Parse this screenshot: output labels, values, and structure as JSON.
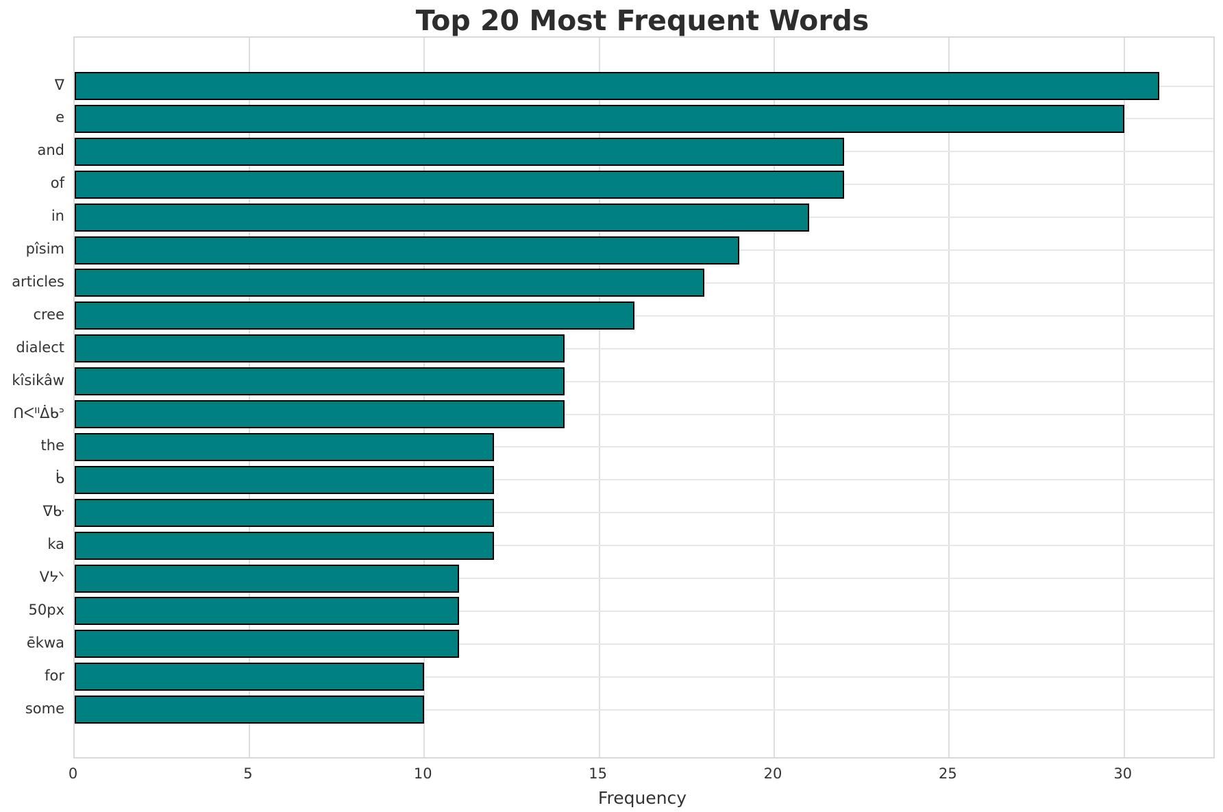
{
  "chart": {
    "title": "Top 20 Most Frequent Words",
    "xlabel": "Frequency"
  },
  "colors": {
    "bar_fill": "#008080",
    "bar_edge": "#000000",
    "grid": "#dedede",
    "spine": "#d9d9d9",
    "title_text": "#2d2d2d",
    "tick_text": "#333333"
  },
  "chart_data": {
    "type": "bar",
    "orientation": "horizontal",
    "title": "Top 20 Most Frequent Words",
    "xlabel": "Frequency",
    "ylabel": "",
    "categories": [
      "ᐁ",
      "e",
      "and",
      "of",
      "in",
      "pîsim",
      "articles",
      "cree",
      "dialect",
      "kîsikâw",
      "ᑎᐸᐦᐄᑲᐣ",
      "the",
      "ᑳ",
      "ᐁᑿ",
      "ka",
      "ᐯᔭᐠ",
      "50px",
      "ēkwa",
      "for",
      "some"
    ],
    "values": [
      31,
      30,
      22,
      22,
      21,
      19,
      18,
      16,
      14,
      14,
      14,
      12,
      12,
      12,
      12,
      11,
      11,
      11,
      10,
      10
    ],
    "xticks": [
      0,
      5,
      10,
      15,
      20,
      25,
      30
    ],
    "xlim": [
      0,
      32.55
    ],
    "grid": true,
    "legend": false
  }
}
